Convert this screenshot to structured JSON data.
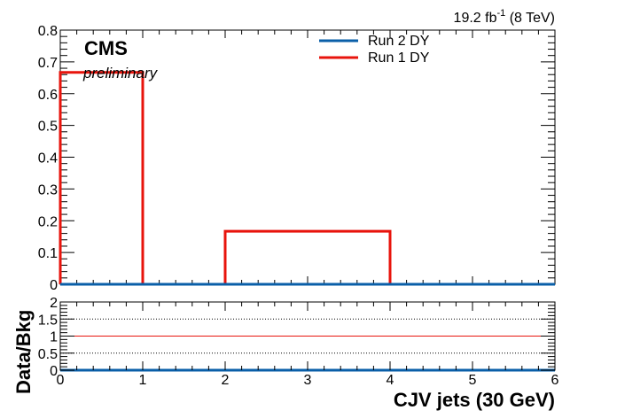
{
  "chart_data": {
    "type": "line",
    "top_panel": {
      "x_bin_edges": [
        0,
        1,
        2,
        3,
        4,
        5,
        6
      ],
      "xlim": [
        0,
        6
      ],
      "ylim": [
        0,
        0.8
      ],
      "yticks": [
        "0",
        "0.1",
        "0.2",
        "0.3",
        "0.4",
        "0.5",
        "0.6",
        "0.7",
        "0.8"
      ],
      "series": [
        {
          "name": "Run 2 DY",
          "color": "#0a5fa8",
          "values": [
            0,
            0,
            0,
            0,
            0,
            0
          ]
        },
        {
          "name": "Run 1 DY",
          "color": "#e8140c",
          "values": [
            0.667,
            0,
            0.167,
            0.167,
            0,
            0
          ]
        }
      ],
      "legend_position": "top-right"
    },
    "bottom_panel": {
      "ylabel": "Data/Bkg",
      "ylim": [
        0,
        2
      ],
      "yticks": [
        "0",
        "0.5",
        "1",
        "1.5",
        "2"
      ],
      "reference_line": 1,
      "dotted_lines": [
        0.5,
        1.5
      ],
      "series_value": 0
    },
    "xticks": [
      "0",
      "1",
      "2",
      "3",
      "4",
      "5",
      "6"
    ],
    "xlabel": "CJV jets (30 GeV)",
    "experiment": "CMS",
    "status": "preliminary",
    "lumi_value": "19.2 fb",
    "lumi_exp": "-1",
    "lumi_energy": " (8 TeV)"
  }
}
